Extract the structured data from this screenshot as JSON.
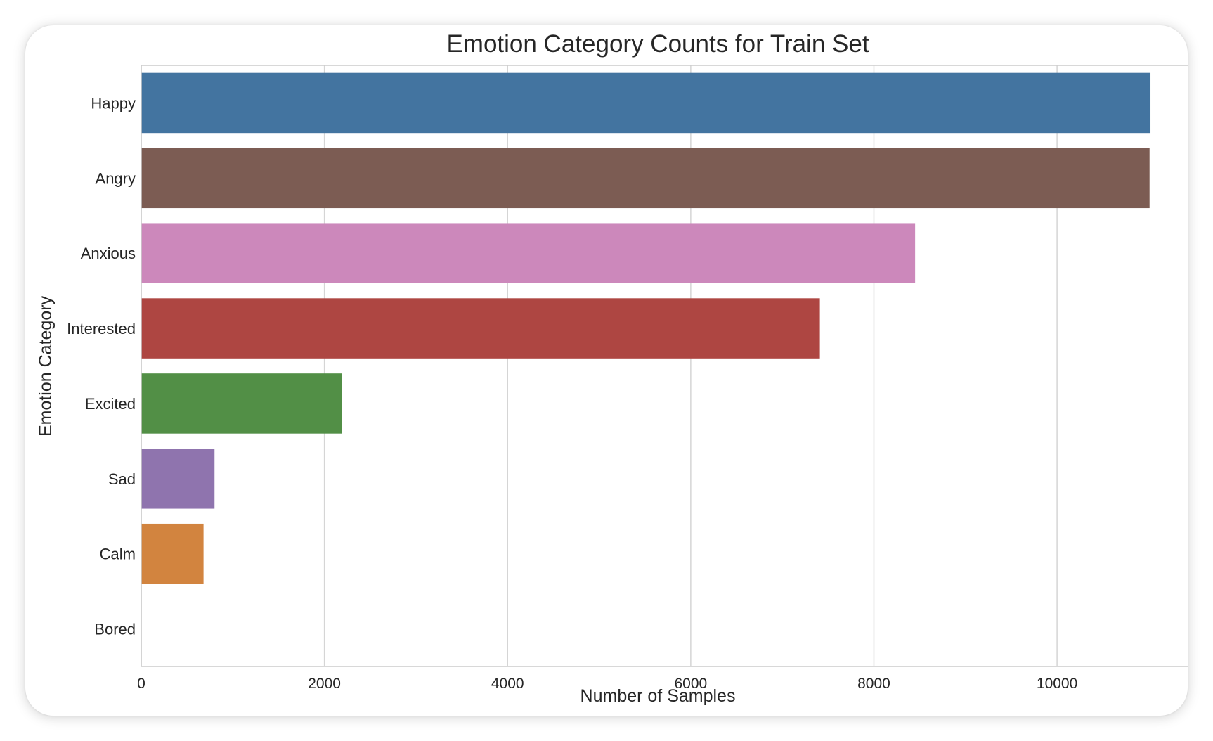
{
  "chart_data": {
    "type": "bar",
    "orientation": "horizontal",
    "title": "Emotion Category Counts for Train Set",
    "xlabel": "Number of Samples",
    "ylabel": "Emotion Category",
    "categories": [
      "Happy",
      "Angry",
      "Anxious",
      "Interested",
      "Excited",
      "Sad",
      "Calm",
      "Bored"
    ],
    "values": [
      11020,
      11010,
      8450,
      7410,
      2190,
      800,
      680,
      0
    ],
    "colors": [
      "#4374a0",
      "#7c5c53",
      "#cc88bb",
      "#ae4642",
      "#528f46",
      "#8f74ae",
      "#d2843f",
      "#8c8c8c"
    ],
    "xlim": [
      0,
      11580
    ],
    "xticks": [
      0,
      2000,
      4000,
      6000,
      8000,
      10000
    ],
    "grid": true,
    "legend": "none"
  }
}
